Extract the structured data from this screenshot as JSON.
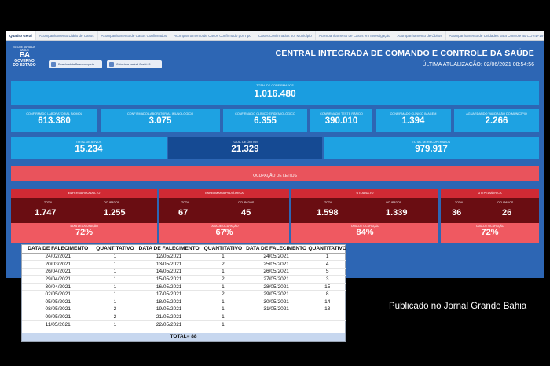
{
  "tabs": [
    {
      "label": "Quadro Geral",
      "active": true
    },
    {
      "label": "Acompanhamento Diário de Casos",
      "active": false
    },
    {
      "label": "Acompanhamento de Casos Confirmados",
      "active": false
    },
    {
      "label": "Acompanhamento de Casos Confirmado por Tipo",
      "active": false
    },
    {
      "label": "Casos Confirmados por Município",
      "active": false
    },
    {
      "label": "Acompanhamento de Casos em Investigação",
      "active": false
    },
    {
      "label": "Acompanhamento de Óbitos",
      "active": false
    },
    {
      "label": "Acompanhamento de Unidades para Controle ao COVID-19",
      "active": false
    }
  ],
  "header": {
    "logo_top": "SECRETARIA DA SAÚDE",
    "logo_mark": "BA",
    "logo_name": "GOVERNO DO ESTADO",
    "btn_download": "Download da Base completa",
    "btn_vacina": "Cobertura vacinal Covid-19",
    "title": "CENTRAL INTEGRADA DE COMANDO E CONTROLE DA SAÚDE",
    "update": "ÚLTIMA ATUALIZAÇÃO: 02/06/2021 08:54:56"
  },
  "confirmados": {
    "label": "TOTAL DE CONFIRMADOS",
    "value": "1.016.480"
  },
  "breakdown": [
    {
      "label": "CONFIRMADO LABORATORIAL BIOMOL",
      "value": "613.380"
    },
    {
      "label": "CONFIRMADO LABORATORIAL IMUNOLÓGICO",
      "value": "3.075"
    },
    {
      "label": "CONFIRMADO CLÍNICO EPIDEMIOLÓGICO",
      "value": "6.355"
    },
    {
      "label": "CONFIRMADO TESTE RÁPIDO",
      "value": "390.010"
    },
    {
      "label": "CONFIRMADO CLÍNICO IMAGEM",
      "value": "1.394"
    },
    {
      "label": "AGUARDANDO VALIDAÇÃO DO MUNICÍPIO",
      "value": "2.266"
    }
  ],
  "summary": [
    {
      "label": "TOTAL DE ATIVOS",
      "value": "15.234"
    },
    {
      "label": "TOTAL DE ÓBITOS",
      "value": "21.329"
    },
    {
      "label": "TOTAL DE RECUPERADOS",
      "value": "979.917"
    }
  ],
  "leitos_title": "OCUPAÇÃO DE LEITOS",
  "wards": [
    {
      "name": "ENFERMARIA ADULTO",
      "total_label": "TOTAL",
      "total": "1.747",
      "ocup_label": "OCUPADOS",
      "ocupados": "1.255",
      "taxa_label": "TAXA DE OCUPAÇÃO",
      "taxa": "72%"
    },
    {
      "name": "ENFERMARIA PEDIÁTRICA",
      "total_label": "TOTAL",
      "total": "67",
      "ocup_label": "OCUPADOS",
      "ocupados": "45",
      "taxa_label": "TAXA DE OCUPAÇÃO",
      "taxa": "67%"
    },
    {
      "name": "UTI ADULTO",
      "total_label": "TOTAL",
      "total": "1.598",
      "ocup_label": "OCUPADOS",
      "ocupados": "1.339",
      "taxa_label": "TAXA DE OCUPAÇÃO",
      "taxa": "84%"
    },
    {
      "name": "UTI PEDIÁTRICA",
      "total_label": "TOTAL",
      "total": "36",
      "ocup_label": "OCUPADOS",
      "ocupados": "26",
      "taxa_label": "TAXA DE OCUPAÇÃO",
      "taxa": "72%"
    }
  ],
  "deaths_table": {
    "headers": [
      "DATA DE FALECIMENTO",
      "QUANTITATIVO",
      "DATA DE FALECIMENTO",
      "QUANTITATIVO",
      "DATA DE FALECIMENTO",
      "QUANTITATIVO"
    ],
    "rows": [
      [
        "24/02/2021",
        "1",
        "12/05/2021",
        "1",
        "24/05/2021",
        "1"
      ],
      [
        "20/03/2021",
        "1",
        "13/05/2021",
        "2",
        "25/05/2021",
        "4"
      ],
      [
        "26/04/2021",
        "1",
        "14/05/2021",
        "1",
        "26/05/2021",
        "5"
      ],
      [
        "29/04/2021",
        "1",
        "15/05/2021",
        "2",
        "27/05/2021",
        "3"
      ],
      [
        "30/04/2021",
        "1",
        "16/05/2021",
        "1",
        "28/05/2021",
        "15"
      ],
      [
        "02/05/2021",
        "1",
        "17/05/2021",
        "2",
        "29/05/2021",
        "8"
      ],
      [
        "05/05/2021",
        "1",
        "18/05/2021",
        "1",
        "30/05/2021",
        "14"
      ],
      [
        "08/05/2021",
        "2",
        "19/05/2021",
        "1",
        "31/05/2021",
        "13"
      ],
      [
        "09/05/2021",
        "2",
        "21/05/2021",
        "1",
        "",
        ""
      ],
      [
        "11/05/2021",
        "1",
        "22/05/2021",
        "1",
        "",
        ""
      ]
    ],
    "total": "TOTAL= 88"
  },
  "caption": "Publicado no Jornal Grande Bahia"
}
